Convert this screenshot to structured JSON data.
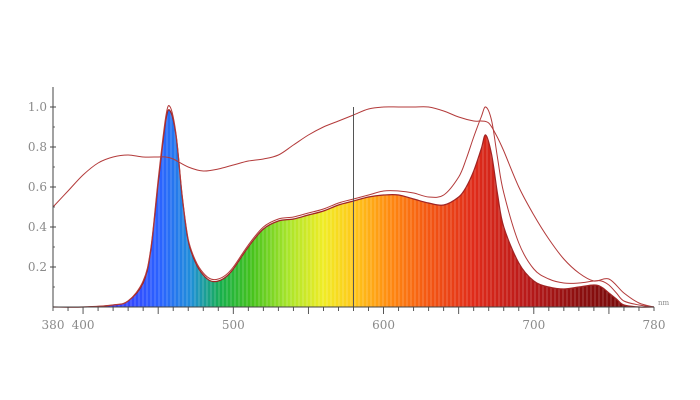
{
  "chart_data": {
    "type": "area",
    "xlabel": "nm",
    "ylabel": "",
    "xlim": [
      380,
      780
    ],
    "ylim": [
      0,
      1.1
    ],
    "x_ticks": [
      380,
      400,
      500,
      600,
      700,
      780
    ],
    "x_tick_labels": [
      "380",
      "400",
      "500",
      "600",
      "700",
      "780"
    ],
    "y_ticks": [
      0.2,
      0.4,
      0.6,
      0.8,
      1.0
    ],
    "y_tick_labels": [
      "0.2",
      "0.4",
      "0.6",
      "0.8",
      "1.0"
    ],
    "marker_line_x": 580,
    "grid": false,
    "series": [
      {
        "style": "spectrum-fill",
        "x": [
          380,
          400,
          420,
          430,
          440,
          445,
          450,
          455,
          458,
          462,
          466,
          470,
          475,
          480,
          485,
          490,
          495,
          500,
          510,
          520,
          530,
          540,
          550,
          560,
          570,
          580,
          590,
          600,
          610,
          620,
          630,
          640,
          650,
          655,
          660,
          665,
          668,
          672,
          676,
          680,
          690,
          700,
          710,
          720,
          730,
          740,
          745,
          750,
          755,
          760,
          770,
          780
        ],
        "y": [
          0,
          0,
          0.01,
          0.03,
          0.12,
          0.28,
          0.62,
          0.93,
          0.98,
          0.85,
          0.55,
          0.33,
          0.22,
          0.16,
          0.13,
          0.13,
          0.15,
          0.19,
          0.3,
          0.39,
          0.43,
          0.44,
          0.46,
          0.48,
          0.51,
          0.53,
          0.55,
          0.56,
          0.56,
          0.54,
          0.52,
          0.51,
          0.55,
          0.6,
          0.68,
          0.79,
          0.86,
          0.76,
          0.56,
          0.4,
          0.22,
          0.13,
          0.1,
          0.09,
          0.1,
          0.11,
          0.1,
          0.07,
          0.04,
          0.01,
          0,
          0
        ]
      },
      {
        "style": "outline",
        "x": [
          380,
          400,
          420,
          430,
          440,
          445,
          450,
          455,
          458,
          462,
          466,
          470,
          475,
          480,
          485,
          490,
          495,
          500,
          510,
          520,
          530,
          540,
          550,
          560,
          570,
          580,
          590,
          600,
          610,
          620,
          630,
          640,
          650,
          655,
          660,
          665,
          668,
          672,
          676,
          680,
          690,
          700,
          710,
          720,
          730,
          740,
          745,
          750,
          755,
          760,
          770,
          780
        ],
        "y": [
          0,
          0,
          0.01,
          0.03,
          0.13,
          0.29,
          0.64,
          0.95,
          1.0,
          0.86,
          0.56,
          0.34,
          0.23,
          0.17,
          0.14,
          0.14,
          0.16,
          0.2,
          0.31,
          0.4,
          0.44,
          0.45,
          0.47,
          0.49,
          0.52,
          0.54,
          0.56,
          0.58,
          0.58,
          0.57,
          0.55,
          0.56,
          0.65,
          0.74,
          0.85,
          0.95,
          1.0,
          0.93,
          0.74,
          0.57,
          0.32,
          0.19,
          0.14,
          0.12,
          0.12,
          0.13,
          0.13,
          0.11,
          0.07,
          0.03,
          0.01,
          0
        ]
      },
      {
        "style": "outline",
        "x": [
          380,
          390,
          400,
          410,
          420,
          430,
          440,
          450,
          455,
          460,
          470,
          480,
          490,
          500,
          510,
          520,
          530,
          540,
          550,
          560,
          570,
          580,
          590,
          600,
          610,
          620,
          630,
          640,
          650,
          660,
          665,
          670,
          675,
          680,
          690,
          700,
          710,
          720,
          730,
          740,
          750,
          760,
          770,
          780
        ],
        "y": [
          0.5,
          0.58,
          0.66,
          0.72,
          0.75,
          0.76,
          0.75,
          0.75,
          0.75,
          0.74,
          0.7,
          0.68,
          0.69,
          0.71,
          0.73,
          0.74,
          0.76,
          0.81,
          0.86,
          0.9,
          0.93,
          0.96,
          0.99,
          1.0,
          1.0,
          1.0,
          1.0,
          0.98,
          0.95,
          0.93,
          0.93,
          0.92,
          0.86,
          0.78,
          0.6,
          0.46,
          0.34,
          0.24,
          0.17,
          0.13,
          0.14,
          0.07,
          0.02,
          0
        ]
      }
    ]
  }
}
